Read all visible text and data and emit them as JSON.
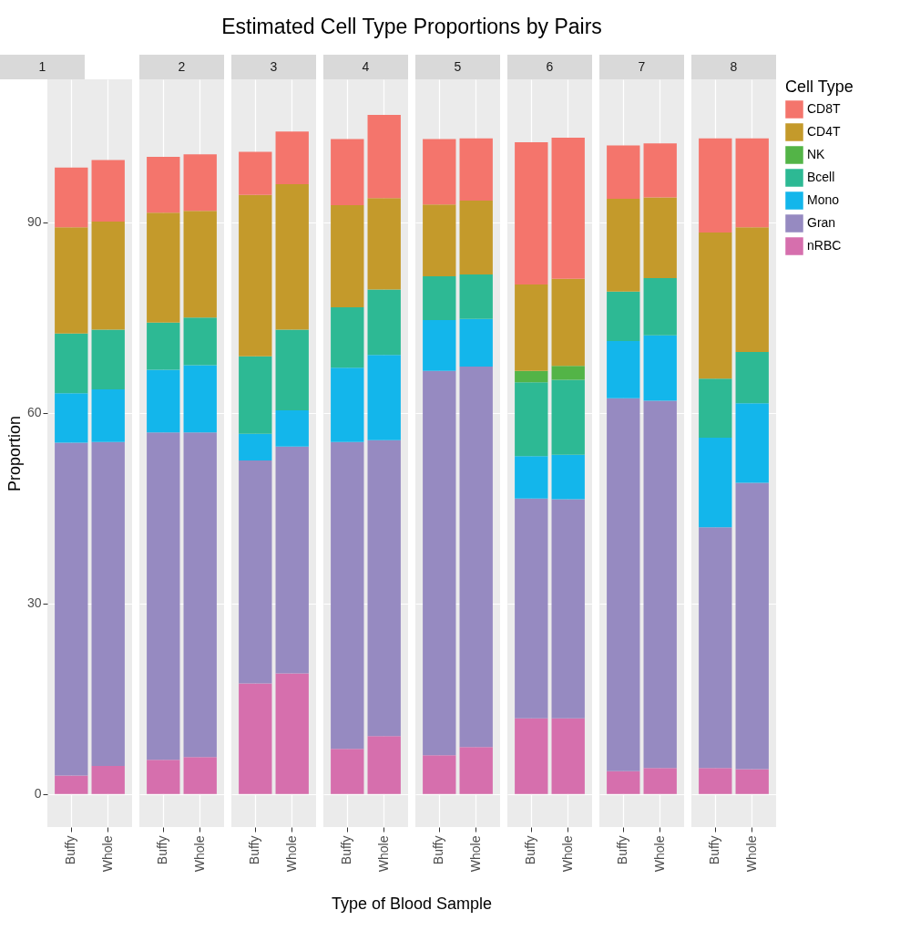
{
  "chart_data": [
    {
      "type": "bar",
      "stacked": true,
      "title": "1",
      "ylabel": "Proportion",
      "categories": [
        "Buffy",
        "Whole"
      ],
      "ylim": [
        -5.2,
        112.5
      ],
      "yticks": [
        0,
        30,
        60,
        90
      ],
      "grid": true,
      "series": [
        {
          "color": "#d66fad",
          "values": [
            2.9,
            4.4
          ]
        },
        {
          "color": "#968ac1",
          "values": [
            52.4,
            51.0
          ]
        },
        {
          "color": "#13b6eb",
          "values": [
            7.8,
            8.3
          ]
        },
        {
          "color": "#2db994",
          "values": [
            9.4,
            9.4
          ]
        },
        {
          "color": "#53b447",
          "values": [
            0,
            0
          ]
        },
        {
          "color": "#c49a2b",
          "values": [
            16.7,
            17.0
          ]
        },
        {
          "color": "#f4756c",
          "values": [
            9.4,
            9.7
          ]
        }
      ]
    },
    {
      "type": "bar",
      "stacked": true,
      "title": "2",
      "categories": [
        "Buffy",
        "Whole"
      ],
      "ylim": [
        -5.2,
        112.5
      ],
      "yticks": [
        0,
        30,
        60,
        90
      ],
      "grid": true,
      "tick_labels": "x",
      "series": [
        {
          "color": "#d66fad",
          "values": [
            5.4,
            5.8
          ]
        },
        {
          "color": "#968ac1",
          "values": [
            51.5,
            51.1
          ]
        },
        {
          "color": "#13b6eb",
          "values": [
            9.9,
            10.6
          ]
        },
        {
          "color": "#2db994",
          "values": [
            7.4,
            7.5
          ]
        },
        {
          "color": "#53b447",
          "values": [
            0,
            0
          ]
        },
        {
          "color": "#c49a2b",
          "values": [
            17.3,
            16.8
          ]
        },
        {
          "color": "#f4756c",
          "values": [
            8.8,
            8.9
          ]
        }
      ]
    },
    {
      "type": "bar",
      "stacked": true,
      "title": "3",
      "categories": [
        "Buffy",
        "Whole"
      ],
      "ylim": [
        -5.2,
        112.5
      ],
      "yticks": [
        0,
        30,
        60,
        90
      ],
      "grid": true,
      "tick_labels": "x",
      "series": [
        {
          "color": "#d66fad",
          "values": [
            17.4,
            19.0
          ]
        },
        {
          "color": "#968ac1",
          "values": [
            35.1,
            35.7
          ]
        },
        {
          "color": "#13b6eb",
          "values": [
            4.2,
            5.7
          ]
        },
        {
          "color": "#2db994",
          "values": [
            12.2,
            12.7
          ]
        },
        {
          "color": "#53b447",
          "values": [
            0,
            0
          ]
        },
        {
          "color": "#c49a2b",
          "values": [
            25.4,
            22.9
          ]
        },
        {
          "color": "#f4756c",
          "values": [
            6.8,
            8.3
          ]
        }
      ]
    },
    {
      "type": "bar",
      "stacked": true,
      "title": "4",
      "annotations": [
        "Estimated Cell Type Proportions by Pairs"
      ],
      "xlabel": "Type of Blood Sample",
      "categories": [
        "Buffy",
        "Whole"
      ],
      "ylim": [
        -5.2,
        112.5
      ],
      "yticks": [
        0,
        30,
        60,
        90
      ],
      "grid": true,
      "tick_labels": "x",
      "series": [
        {
          "color": "#d66fad",
          "values": [
            7.1,
            9.1
          ]
        },
        {
          "color": "#968ac1",
          "values": [
            48.3,
            46.6
          ]
        },
        {
          "color": "#13b6eb",
          "values": [
            11.7,
            13.4
          ]
        },
        {
          "color": "#2db994",
          "values": [
            9.5,
            10.3
          ]
        },
        {
          "color": "#53b447",
          "values": [
            0,
            0
          ]
        },
        {
          "color": "#c49a2b",
          "values": [
            16.1,
            14.4
          ]
        },
        {
          "color": "#f4756c",
          "values": [
            10.4,
            13.1
          ]
        }
      ]
    },
    {
      "type": "bar",
      "stacked": true,
      "title": "5",
      "categories": [
        "Buffy",
        "Whole"
      ],
      "ylim": [
        -5.2,
        112.5
      ],
      "yticks": [
        0,
        30,
        60,
        90
      ],
      "grid": true,
      "tick_labels": "x",
      "series": [
        {
          "color": "#d66fad",
          "values": [
            6.1,
            7.4
          ]
        },
        {
          "color": "#968ac1",
          "values": [
            60.5,
            59.9
          ]
        },
        {
          "color": "#13b6eb",
          "values": [
            8.0,
            7.5
          ]
        },
        {
          "color": "#2db994",
          "values": [
            6.9,
            7.0
          ]
        },
        {
          "color": "#53b447",
          "values": [
            0,
            0
          ]
        },
        {
          "color": "#c49a2b",
          "values": [
            11.3,
            11.6
          ]
        },
        {
          "color": "#f4756c",
          "values": [
            10.3,
            9.8
          ]
        }
      ]
    },
    {
      "type": "bar",
      "stacked": true,
      "title": "6",
      "categories": [
        "Buffy",
        "Whole"
      ],
      "ylim": [
        -5.2,
        112.5
      ],
      "yticks": [
        0,
        30,
        60,
        90
      ],
      "grid": true,
      "tick_labels": "x",
      "series": [
        {
          "color": "#d66fad",
          "values": [
            11.9,
            11.9
          ]
        },
        {
          "color": "#968ac1",
          "values": [
            34.6,
            34.5
          ]
        },
        {
          "color": "#13b6eb",
          "values": [
            6.7,
            7.0
          ]
        },
        {
          "color": "#2db994",
          "values": [
            11.6,
            11.8
          ]
        },
        {
          "color": "#53b447",
          "values": [
            1.8,
            2.2
          ]
        },
        {
          "color": "#c49a2b",
          "values": [
            13.6,
            13.7
          ]
        },
        {
          "color": "#f4756c",
          "values": [
            22.4,
            22.2
          ]
        }
      ]
    },
    {
      "type": "bar",
      "stacked": true,
      "title": "7",
      "categories": [
        "Buffy",
        "Whole"
      ],
      "ylim": [
        -5.2,
        112.5
      ],
      "yticks": [
        0,
        30,
        60,
        90
      ],
      "grid": true,
      "tick_labels": "x",
      "series": [
        {
          "color": "#d66fad",
          "values": [
            3.6,
            4.1
          ]
        },
        {
          "color": "#968ac1",
          "values": [
            58.7,
            57.8
          ]
        },
        {
          "color": "#13b6eb",
          "values": [
            9.0,
            10.3
          ]
        },
        {
          "color": "#2db994",
          "values": [
            7.8,
            9.0
          ]
        },
        {
          "color": "#53b447",
          "values": [
            0,
            0
          ]
        },
        {
          "color": "#c49a2b",
          "values": [
            14.6,
            12.7
          ]
        },
        {
          "color": "#f4756c",
          "values": [
            8.4,
            8.5
          ]
        }
      ]
    },
    {
      "type": "bar",
      "stacked": true,
      "title": "8",
      "categories": [
        "Buffy",
        "Whole"
      ],
      "ylim": [
        -5.2,
        112.5
      ],
      "yticks": [
        0,
        30,
        60,
        90
      ],
      "grid": true,
      "tick_labels": "x",
      "legend": "right",
      "legend_title": "Cell Type",
      "series": [
        {
          "name": "nRBC",
          "color": "#d66fad",
          "values": [
            4.1,
            3.9
          ]
        },
        {
          "name": "Gran",
          "color": "#968ac1",
          "values": [
            37.9,
            45.1
          ]
        },
        {
          "name": "Mono",
          "color": "#13b6eb",
          "values": [
            14.1,
            12.5
          ]
        },
        {
          "name": "Bcell",
          "color": "#2db994",
          "values": [
            9.3,
            8.1
          ]
        },
        {
          "name": "NK",
          "color": "#53b447",
          "values": [
            0,
            0
          ]
        },
        {
          "name": "CD4T",
          "color": "#c49a2b",
          "values": [
            23.0,
            19.6
          ]
        },
        {
          "name": "CD8T",
          "color": "#f4756c",
          "values": [
            14.8,
            14.0
          ]
        }
      ]
    }
  ]
}
